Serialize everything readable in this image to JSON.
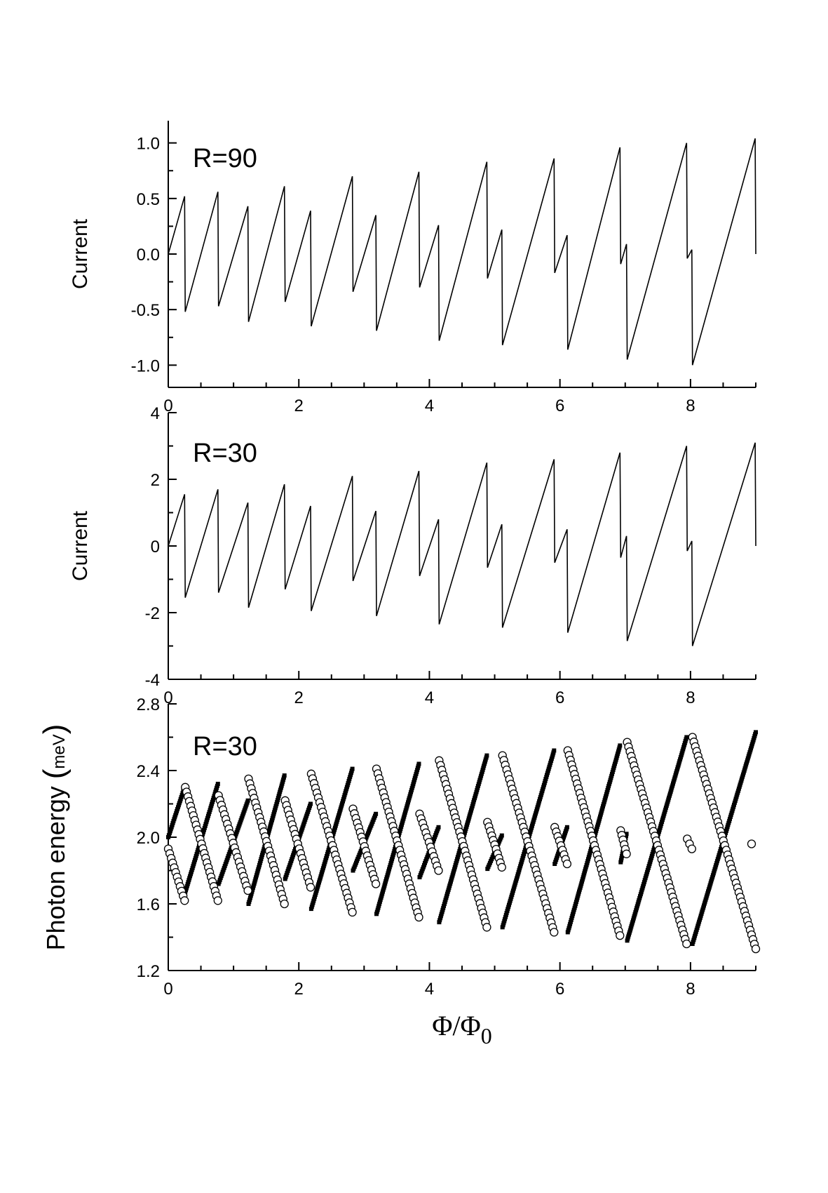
{
  "chart_data": [
    {
      "type": "line",
      "annotation": "R=90",
      "ylabel": "Current",
      "xlabel": "",
      "xlim": [
        0,
        9
      ],
      "ylim": [
        -1.2,
        1.2
      ],
      "xticks": [
        0,
        2,
        4,
        6,
        8
      ],
      "yticks": [
        -1.0,
        -0.5,
        0.0,
        0.5,
        1.0
      ],
      "ytick_labels": [
        "-1.0",
        "-0.5",
        "0.0",
        "0.5",
        "1.0"
      ],
      "series": [
        {
          "x": [
            0,
            0.25,
            0.26,
            0.76,
            0.77,
            1.22,
            1.23,
            1.78,
            1.79,
            2.18,
            2.19,
            2.82,
            2.83,
            3.18,
            3.19,
            3.84,
            3.85,
            4.14,
            4.15,
            4.88,
            4.89,
            5.11,
            5.12,
            5.91,
            5.92,
            6.11,
            6.12,
            6.92,
            6.93,
            7.02,
            7.03,
            7.94,
            7.95,
            8.02,
            8.03,
            8.99,
            9.0
          ],
          "y": [
            0.0,
            0.52,
            -0.52,
            0.56,
            -0.47,
            0.43,
            -0.61,
            0.61,
            -0.43,
            0.39,
            -0.65,
            0.7,
            -0.34,
            0.35,
            -0.69,
            0.74,
            -0.3,
            0.26,
            -0.78,
            0.83,
            -0.22,
            0.22,
            -0.82,
            0.86,
            -0.17,
            0.17,
            -0.86,
            0.96,
            -0.09,
            0.09,
            -0.95,
            1.0,
            -0.04,
            0.04,
            -1.0,
            1.04,
            0.0
          ]
        }
      ]
    },
    {
      "type": "line",
      "annotation": "R=30",
      "ylabel": "Current",
      "xlabel": "",
      "xlim": [
        0,
        9
      ],
      "ylim": [
        -4,
        4
      ],
      "xticks": [
        0,
        2,
        4,
        6,
        8
      ],
      "yticks": [
        -4,
        -2,
        0,
        2,
        4
      ],
      "ytick_labels": [
        "-4",
        "-2",
        "0",
        "2",
        "4"
      ],
      "series": [
        {
          "x": [
            0,
            0.25,
            0.26,
            0.76,
            0.77,
            1.22,
            1.23,
            1.78,
            1.79,
            2.18,
            2.19,
            2.82,
            2.83,
            3.18,
            3.19,
            3.84,
            3.85,
            4.14,
            4.15,
            4.88,
            4.89,
            5.11,
            5.12,
            5.91,
            5.92,
            6.11,
            6.12,
            6.92,
            6.93,
            7.02,
            7.03,
            7.94,
            7.95,
            8.02,
            8.03,
            8.99,
            9.0
          ],
          "y": [
            0.0,
            1.55,
            -1.55,
            1.7,
            -1.4,
            1.3,
            -1.85,
            1.85,
            -1.3,
            1.2,
            -1.95,
            2.1,
            -1.05,
            1.05,
            -2.1,
            2.25,
            -0.9,
            0.8,
            -2.35,
            2.5,
            -0.65,
            0.65,
            -2.45,
            2.6,
            -0.5,
            0.5,
            -2.6,
            2.8,
            -0.35,
            0.3,
            -2.85,
            3.0,
            -0.15,
            0.15,
            -3.0,
            3.1,
            0.0
          ]
        }
      ]
    },
    {
      "type": "scatter",
      "annotation": "R=30",
      "ylabel": "Photon energy (meV)",
      "ylabel_main": "Photon energy",
      "ylabel_unit": "meV",
      "xlabel": "Φ/Φ0",
      "xlim": [
        0,
        9
      ],
      "ylim": [
        1.2,
        2.8
      ],
      "xticks": [
        0,
        2,
        4,
        6,
        8
      ],
      "yticks": [
        1.2,
        1.6,
        2.0,
        2.4,
        2.8
      ],
      "ytick_labels": [
        "1.2",
        "1.6",
        "2.0",
        "2.4",
        "2.8"
      ],
      "series": [
        {
          "marker": "open-circle",
          "segments": [
            {
              "x0": 0.0,
              "y0": 1.93,
              "x1": 0.25,
              "y1": 1.62
            },
            {
              "x0": 0.26,
              "y0": 2.3,
              "x1": 0.76,
              "y1": 1.62
            },
            {
              "x0": 0.77,
              "y0": 2.25,
              "x1": 1.22,
              "y1": 1.68
            },
            {
              "x0": 1.23,
              "y0": 2.35,
              "x1": 1.78,
              "y1": 1.6
            },
            {
              "x0": 1.79,
              "y0": 2.22,
              "x1": 2.18,
              "y1": 1.7
            },
            {
              "x0": 2.19,
              "y0": 2.38,
              "x1": 2.82,
              "y1": 1.55
            },
            {
              "x0": 2.83,
              "y0": 2.17,
              "x1": 3.18,
              "y1": 1.72
            },
            {
              "x0": 3.19,
              "y0": 2.41,
              "x1": 3.84,
              "y1": 1.52
            },
            {
              "x0": 3.85,
              "y0": 2.14,
              "x1": 4.14,
              "y1": 1.8
            },
            {
              "x0": 4.15,
              "y0": 2.46,
              "x1": 4.88,
              "y1": 1.46
            },
            {
              "x0": 4.89,
              "y0": 2.09,
              "x1": 5.11,
              "y1": 1.82
            },
            {
              "x0": 5.12,
              "y0": 2.49,
              "x1": 5.91,
              "y1": 1.43
            },
            {
              "x0": 5.92,
              "y0": 2.06,
              "x1": 6.11,
              "y1": 1.84
            },
            {
              "x0": 6.12,
              "y0": 2.52,
              "x1": 6.92,
              "y1": 1.41
            },
            {
              "x0": 6.93,
              "y0": 2.04,
              "x1": 7.02,
              "y1": 1.9
            },
            {
              "x0": 7.03,
              "y0": 2.57,
              "x1": 7.94,
              "y1": 1.36
            },
            {
              "x0": 7.95,
              "y0": 1.99,
              "x1": 8.02,
              "y1": 1.93
            },
            {
              "x0": 8.03,
              "y0": 2.6,
              "x1": 9.0,
              "y1": 1.33
            }
          ],
          "isolated": [
            {
              "x": 9.0,
              "y": 1.96
            }
          ]
        },
        {
          "marker": "filled-square",
          "segments": [
            {
              "x0": 0.0,
              "y0": 2.0,
              "x1": 0.25,
              "y1": 2.3
            },
            {
              "x0": 0.26,
              "y0": 1.67,
              "x1": 0.76,
              "y1": 2.32
            },
            {
              "x0": 0.77,
              "y0": 1.72,
              "x1": 1.22,
              "y1": 2.22
            },
            {
              "x0": 1.23,
              "y0": 1.6,
              "x1": 1.78,
              "y1": 2.37
            },
            {
              "x0": 1.79,
              "y0": 1.75,
              "x1": 2.18,
              "y1": 2.2
            },
            {
              "x0": 2.19,
              "y0": 1.57,
              "x1": 2.82,
              "y1": 2.41
            },
            {
              "x0": 2.83,
              "y0": 1.8,
              "x1": 3.18,
              "y1": 2.14
            },
            {
              "x0": 3.19,
              "y0": 1.54,
              "x1": 3.84,
              "y1": 2.44
            },
            {
              "x0": 3.85,
              "y0": 1.76,
              "x1": 4.14,
              "y1": 2.06
            },
            {
              "x0": 4.15,
              "y0": 1.49,
              "x1": 4.88,
              "y1": 2.49
            },
            {
              "x0": 4.89,
              "y0": 1.81,
              "x1": 5.11,
              "y1": 2.01
            },
            {
              "x0": 5.12,
              "y0": 1.46,
              "x1": 5.91,
              "y1": 2.52
            },
            {
              "x0": 5.92,
              "y0": 1.84,
              "x1": 6.11,
              "y1": 2.06
            },
            {
              "x0": 6.12,
              "y0": 1.43,
              "x1": 6.92,
              "y1": 2.55
            },
            {
              "x0": 6.93,
              "y0": 1.85,
              "x1": 7.02,
              "y1": 2.02
            },
            {
              "x0": 7.03,
              "y0": 1.38,
              "x1": 7.94,
              "y1": 2.6
            },
            {
              "x0": 8.03,
              "y0": 1.36,
              "x1": 9.0,
              "y1": 2.63
            }
          ]
        }
      ]
    }
  ]
}
